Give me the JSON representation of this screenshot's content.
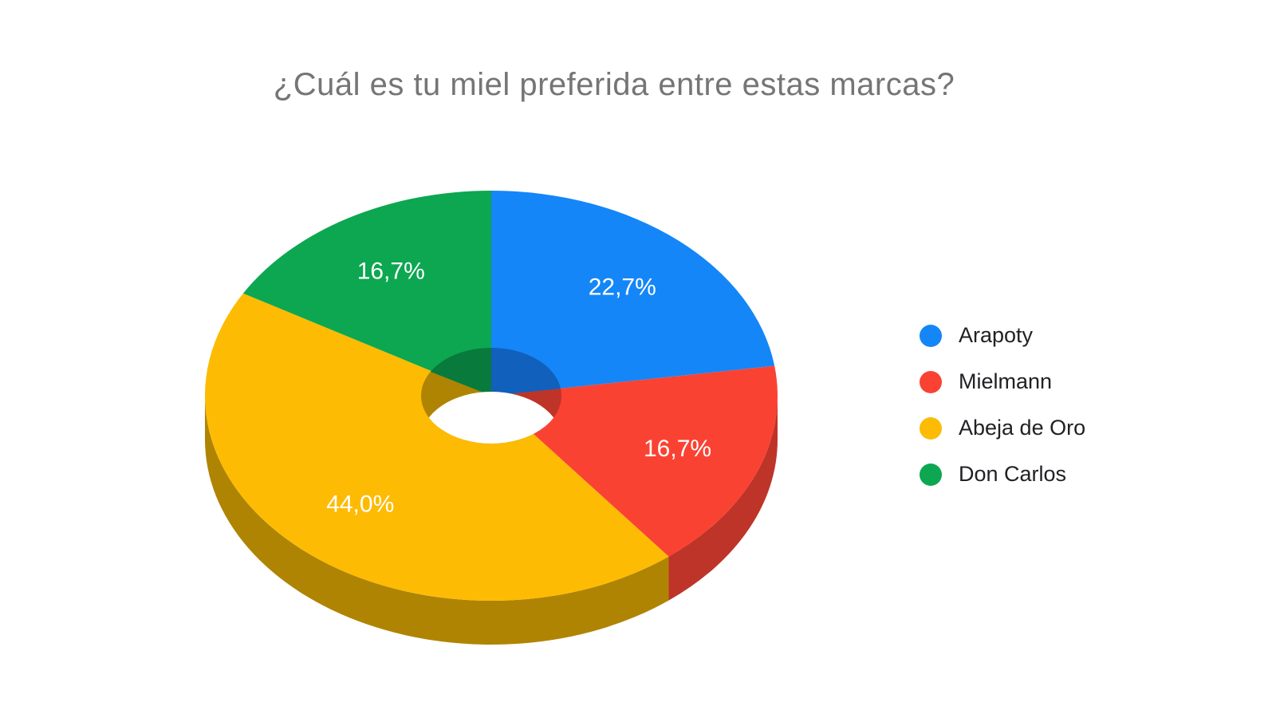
{
  "page": {
    "background": "#ffffff"
  },
  "chart_data": {
    "type": "pie",
    "style": "3d-donut",
    "title": "¿Cuál es tu miel preferida entre estas marcas?",
    "title_color": "#757575",
    "legend_position": "right",
    "start_angle_deg": 0,
    "direction": "clockwise",
    "label_color": "#ffffff",
    "slices": [
      {
        "label": "Arapoty",
        "value": 22.7,
        "display": "22,7%",
        "color": "#1486F8",
        "side_color": "#1160BC"
      },
      {
        "label": "Mielmann",
        "value": 16.7,
        "display": "16,7%",
        "color": "#FA4233",
        "side_color": "#BE3428"
      },
      {
        "label": "Abeja de Oro",
        "value": 44.0,
        "display": "44,0%",
        "color": "#FDBB04",
        "side_color": "#B08403"
      },
      {
        "label": "Don Carlos",
        "value": 16.7,
        "display": "16,7%",
        "color": "#0CA750",
        "side_color": "#087A3C"
      }
    ]
  }
}
